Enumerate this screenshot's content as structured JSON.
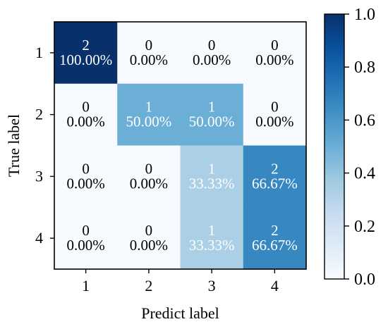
{
  "chart_data": {
    "type": "heatmap",
    "title": "",
    "xlabel": "Predict label",
    "ylabel": "True label",
    "x_categories": [
      "1",
      "2",
      "3",
      "4"
    ],
    "y_categories": [
      "1",
      "2",
      "3",
      "4"
    ],
    "counts": [
      [
        2,
        0,
        0,
        0
      ],
      [
        0,
        1,
        1,
        0
      ],
      [
        0,
        0,
        1,
        2
      ],
      [
        0,
        0,
        1,
        2
      ]
    ],
    "percentages": [
      [
        "100.00%",
        "0.00%",
        "0.00%",
        "0.00%"
      ],
      [
        "0.00%",
        "50.00%",
        "50.00%",
        "0.00%"
      ],
      [
        "0.00%",
        "0.00%",
        "33.33%",
        "66.67%"
      ],
      [
        "0.00%",
        "0.00%",
        "33.33%",
        "66.67%"
      ]
    ],
    "normalized_values": [
      [
        1.0,
        0.0,
        0.0,
        0.0
      ],
      [
        0.0,
        0.5,
        0.5,
        0.0
      ],
      [
        0.0,
        0.0,
        0.3333,
        0.6667
      ],
      [
        0.0,
        0.0,
        0.3333,
        0.6667
      ]
    ],
    "colorbar": {
      "range": [
        0.0,
        1.0
      ],
      "ticks": [
        "0.0",
        "0.2",
        "0.4",
        "0.6",
        "0.8",
        "1.0"
      ],
      "colormap": "Blues",
      "color_low": "#f7fbff",
      "color_high": "#08306b"
    }
  }
}
